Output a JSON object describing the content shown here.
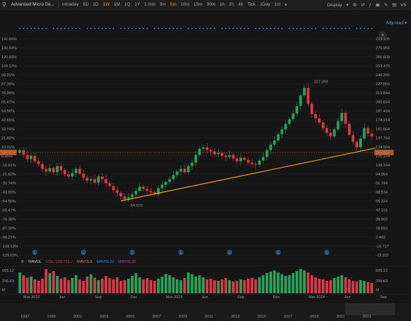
{
  "toolbar": {
    "title": "Advanced Micro De...",
    "intervals": [
      "Intraday",
      "5D",
      "1D",
      "1W",
      "1M",
      "1Q",
      "1Y",
      "1 min",
      "3m",
      "5m",
      "10m",
      "15m",
      "30m",
      "1h",
      "2h",
      "4h",
      "Tick"
    ],
    "active_interval": "1W",
    "highlighted_interval": "5m",
    "period_selector": "1Day : 1m",
    "display_label": "Display",
    "right_extra": "V5"
  },
  "adjusted_label": "Adjusted",
  "price_axis_left": [
    "141.86%",
    "130.94%",
    "120.03%",
    "109.12%",
    "98.21%",
    "87.30%",
    "76.38%",
    "65.47%",
    "54.56%",
    "43.65%",
    "32.74%",
    "21.82%",
    "10.91%",
    "0.00%",
    "-10.91%",
    "-21.82%",
    "-32.74%",
    "-43.65%",
    "-54.56%",
    "-65.47%",
    "-76.38%",
    "-87.30%",
    "-98.21%",
    "-109.12%",
    "-120.03%"
  ],
  "price_axis_right": [
    "293.105",
    "279.955",
    "266.605",
    "253.475",
    "240.265",
    "227.055",
    "213.844",
    "200.634",
    "187.424",
    "174.214",
    "161.004",
    "147.794",
    "134.584",
    "121.374",
    "108.164",
    "94.954",
    "81.744",
    "68.534",
    "55.324",
    "42.113",
    "28.903",
    "15.693",
    "2.483",
    "-10.727",
    "-23.937"
  ],
  "current_left_label": "124.633",
  "current_right_label": "124.633",
  "annotations": {
    "high": "227.300",
    "low": "54.570"
  },
  "volume_legend": {
    "title": "MAVOL",
    "vol_label": "VOL: 169.751 ↑",
    "mavol5": "MAVOL5",
    "mavol10": "MAVOL10",
    "mavol20": "MAVOL20"
  },
  "volume_axis": [
    "605.12",
    "296.63",
    "M"
  ],
  "time_axis": [
    "Mar 2022",
    "Jun",
    "Sep",
    "Dec",
    "Mar 2023",
    "Jun",
    "Sep",
    "Dec",
    "Mar 2024",
    "Jun",
    "Sep"
  ],
  "years_axis": [
    "1997",
    "1999",
    "2001",
    "2003",
    "2005",
    "2007",
    "2009",
    "2011",
    "2013",
    "2015",
    "2017",
    "2019",
    "2021",
    "2023"
  ],
  "colors": {
    "up": "#26a65b",
    "down": "#e0384b",
    "trendline": "#f0a020",
    "accent": "#f0a020",
    "link": "#5aa0e6"
  },
  "chart_data": {
    "type": "candlestick",
    "title": "Advanced Micro De...",
    "ylim": [
      -23.937,
      293.105
    ],
    "reference_price": 124.633,
    "high_label": 227.3,
    "low_label": 54.57,
    "closes": [
      128,
      121,
      115,
      120,
      112,
      108,
      101,
      97,
      102,
      96,
      105,
      99,
      93,
      90,
      95,
      101,
      94,
      88,
      84,
      86,
      81,
      90,
      86,
      80,
      76,
      70,
      66,
      61,
      57,
      60,
      64,
      69,
      75,
      72,
      69,
      67,
      64,
      73,
      78,
      82,
      86,
      92,
      97,
      101,
      96,
      105,
      110,
      121,
      130,
      132,
      128,
      126,
      122,
      124,
      120,
      118,
      121,
      116,
      112,
      117,
      114,
      110,
      108,
      107,
      113,
      118,
      128,
      136,
      142,
      151,
      158,
      166,
      173,
      181,
      192,
      207,
      218,
      195,
      180,
      174,
      168,
      160,
      153,
      148,
      158,
      170,
      182,
      166,
      150,
      140,
      132,
      145,
      160,
      152,
      148
    ],
    "volumes": [
      60,
      52,
      45,
      48,
      40,
      36,
      42,
      70,
      58,
      64,
      50,
      42,
      46,
      38,
      44,
      52,
      40,
      36,
      48,
      55,
      45,
      38,
      42,
      50,
      44,
      40,
      46,
      36,
      38,
      42,
      50,
      58,
      46,
      40,
      44,
      38,
      36,
      42,
      48,
      56,
      52,
      46,
      40,
      38,
      44,
      60,
      55,
      48,
      52,
      46,
      40,
      42,
      38,
      36,
      40,
      44,
      38,
      34,
      36,
      40,
      38,
      42,
      44,
      40,
      46,
      52,
      58,
      62,
      66,
      60,
      55,
      50,
      52,
      58,
      64,
      70,
      66,
      60,
      52,
      46,
      42,
      40,
      36,
      38,
      44,
      48,
      52,
      46,
      40,
      36,
      34,
      38,
      36,
      32,
      30
    ],
    "trendline": {
      "from": {
        "index": 27,
        "price": 54.57
      },
      "to": {
        "index": 95,
        "price": 131
      }
    },
    "volume_ylim": [
      0,
      605.12
    ]
  }
}
